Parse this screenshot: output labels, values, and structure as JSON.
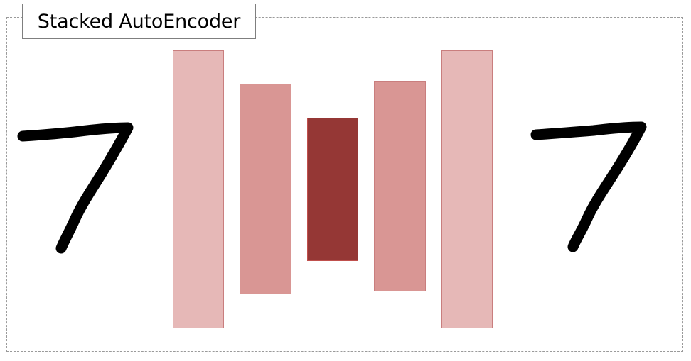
{
  "diagram": {
    "title": "Stacked AutoEncoder",
    "input_digit": "7",
    "output_digit": "7",
    "layers": [
      {
        "role": "input-side encoder layer",
        "color": "#e6b8b7"
      },
      {
        "role": "encoder hidden layer",
        "color": "#d99694"
      },
      {
        "role": "code layer",
        "color": "#953735"
      },
      {
        "role": "decoder hidden layer",
        "color": "#d99694"
      },
      {
        "role": "output-side decoder layer",
        "color": "#e6b8b7"
      }
    ]
  }
}
